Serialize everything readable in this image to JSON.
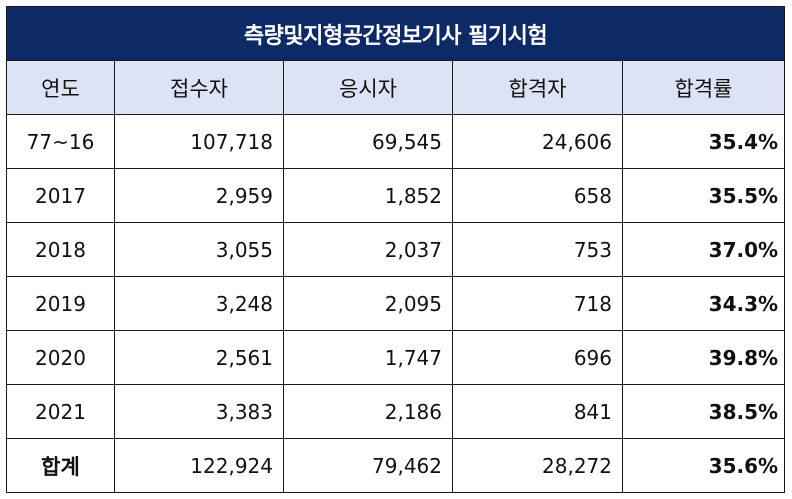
{
  "title": "측량및지형공간정보기사 필기시험",
  "columns": [
    "연도",
    "접수자",
    "응시자",
    "합격자",
    "합격률"
  ],
  "rows": [
    {
      "year": "77~16",
      "applied": "107,718",
      "attended": "69,545",
      "passed": "24,606",
      "rate": "35.4%"
    },
    {
      "year": "2017",
      "applied": "2,959",
      "attended": "1,852",
      "passed": "658",
      "rate": "35.5%"
    },
    {
      "year": "2018",
      "applied": "3,055",
      "attended": "2,037",
      "passed": "753",
      "rate": "37.0%"
    },
    {
      "year": "2019",
      "applied": "3,248",
      "attended": "2,095",
      "passed": "718",
      "rate": "34.3%"
    },
    {
      "year": "2020",
      "applied": "2,561",
      "attended": "1,747",
      "passed": "696",
      "rate": "39.8%"
    },
    {
      "year": "2021",
      "applied": "3,383",
      "attended": "2,186",
      "passed": "841",
      "rate": "38.5%"
    }
  ],
  "total": {
    "year": "합계",
    "applied": "122,924",
    "attended": "79,462",
    "passed": "28,272",
    "rate": "35.6%"
  },
  "colors": {
    "title_bg": "#0d2a66",
    "header_bg": "#dce3f4",
    "border": "#1a1a1a"
  }
}
